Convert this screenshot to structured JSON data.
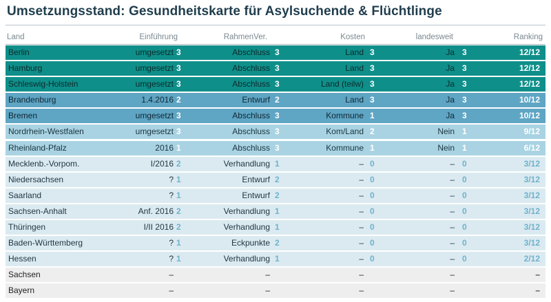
{
  "title": "Umsetzungsstand: Gesundheitskarte für Asylsuchende & Flüchtlinge",
  "colors": {
    "tier_full": "#0f8f8a",
    "tier_high": "#5fa5c4",
    "tier_mid": "#a9d3e2",
    "tier_low": "#dbeaf1",
    "tier_none": "#eeeeee"
  },
  "chart_data": {
    "type": "table",
    "title": "Umsetzungsstand: Gesundheitskarte für Asylsuchende & Flüchtlinge",
    "columns": [
      "Land",
      "Einführung",
      "RahmenVer.",
      "Kosten",
      "landesweit",
      "Ranking"
    ],
    "rows": [
      {
        "land": "Berlin",
        "einfuehrung": "umgesetzt",
        "einfuehrung_score": "3",
        "rahmen": "Abschluss",
        "rahmen_score": "3",
        "kosten": "Land",
        "kosten_score": "3",
        "landesweit": "Ja",
        "landesweit_score": "3",
        "ranking": "12/12",
        "tier": "t1"
      },
      {
        "land": "Hamburg",
        "einfuehrung": "umgesetzt",
        "einfuehrung_score": "3",
        "rahmen": "Abschluss",
        "rahmen_score": "3",
        "kosten": "Land",
        "kosten_score": "3",
        "landesweit": "Ja",
        "landesweit_score": "3",
        "ranking": "12/12",
        "tier": "t1"
      },
      {
        "land": "Schleswig-Holstein",
        "einfuehrung": "umgesetzt",
        "einfuehrung_score": "3",
        "rahmen": "Abschluss",
        "rahmen_score": "3",
        "kosten": "Land (teilw)",
        "kosten_score": "3",
        "landesweit": "Ja",
        "landesweit_score": "3",
        "ranking": "12/12",
        "tier": "t1"
      },
      {
        "land": "Brandenburg",
        "einfuehrung": "1.4.2016",
        "einfuehrung_score": "2",
        "rahmen": "Entwurf",
        "rahmen_score": "2",
        "kosten": "Land",
        "kosten_score": "3",
        "landesweit": "Ja",
        "landesweit_score": "3",
        "ranking": "10/12",
        "tier": "t2"
      },
      {
        "land": "Bremen",
        "einfuehrung": "umgesetzt",
        "einfuehrung_score": "3",
        "rahmen": "Abschluss",
        "rahmen_score": "3",
        "kosten": "Kommune",
        "kosten_score": "1",
        "landesweit": "Ja",
        "landesweit_score": "3",
        "ranking": "10/12",
        "tier": "t2"
      },
      {
        "land": "Nordrhein-Westfalen",
        "einfuehrung": "umgesetzt",
        "einfuehrung_score": "3",
        "rahmen": "Abschluss",
        "rahmen_score": "3",
        "kosten": "Kom/Land",
        "kosten_score": "2",
        "landesweit": "Nein",
        "landesweit_score": "1",
        "ranking": "9/12",
        "tier": "t3"
      },
      {
        "land": "Rheinland-Pfalz",
        "einfuehrung": "2016",
        "einfuehrung_score": "1",
        "rahmen": "Abschluss",
        "rahmen_score": "3",
        "kosten": "Kommune",
        "kosten_score": "1",
        "landesweit": "Nein",
        "landesweit_score": "1",
        "ranking": "6/12",
        "tier": "t3"
      },
      {
        "land": "Mecklenb.-Vorpom.",
        "einfuehrung": "I/2016",
        "einfuehrung_score": "2",
        "rahmen": "Verhandlung",
        "rahmen_score": "1",
        "kosten": "–",
        "kosten_score": "0",
        "landesweit": "–",
        "landesweit_score": "0",
        "ranking": "3/12",
        "tier": "t4"
      },
      {
        "land": "Niedersachsen",
        "einfuehrung": "?",
        "einfuehrung_score": "1",
        "rahmen": "Entwurf",
        "rahmen_score": "2",
        "kosten": "–",
        "kosten_score": "0",
        "landesweit": "–",
        "landesweit_score": "0",
        "ranking": "3/12",
        "tier": "t4"
      },
      {
        "land": "Saarland",
        "einfuehrung": "?",
        "einfuehrung_score": "1",
        "rahmen": "Entwurf",
        "rahmen_score": "2",
        "kosten": "–",
        "kosten_score": "0",
        "landesweit": "–",
        "landesweit_score": "0",
        "ranking": "3/12",
        "tier": "t4"
      },
      {
        "land": "Sachsen-Anhalt",
        "einfuehrung": "Anf. 2016",
        "einfuehrung_score": "2",
        "rahmen": "Verhandlung",
        "rahmen_score": "1",
        "kosten": "–",
        "kosten_score": "0",
        "landesweit": "–",
        "landesweit_score": "0",
        "ranking": "3/12",
        "tier": "t4"
      },
      {
        "land": "Thüringen",
        "einfuehrung": "I/II 2016",
        "einfuehrung_score": "2",
        "rahmen": "Verhandlung",
        "rahmen_score": "1",
        "kosten": "–",
        "kosten_score": "0",
        "landesweit": "–",
        "landesweit_score": "0",
        "ranking": "3/12",
        "tier": "t4"
      },
      {
        "land": "Baden-Württemberg",
        "einfuehrung": "?",
        "einfuehrung_score": "1",
        "rahmen": "Eckpunkte",
        "rahmen_score": "2",
        "kosten": "–",
        "kosten_score": "0",
        "landesweit": "–",
        "landesweit_score": "0",
        "ranking": "3/12",
        "tier": "t4"
      },
      {
        "land": "Hessen",
        "einfuehrung": "?",
        "einfuehrung_score": "1",
        "rahmen": "Verhandlung",
        "rahmen_score": "1",
        "kosten": "–",
        "kosten_score": "0",
        "landesweit": "–",
        "landesweit_score": "0",
        "ranking": "2/12",
        "tier": "t4"
      },
      {
        "land": "Sachsen",
        "einfuehrung": "–",
        "einfuehrung_score": "",
        "rahmen": "–",
        "rahmen_score": "",
        "kosten": "–",
        "kosten_score": "",
        "landesweit": "–",
        "landesweit_score": "",
        "ranking": "–",
        "tier": "t5"
      },
      {
        "land": "Bayern",
        "einfuehrung": "–",
        "einfuehrung_score": "",
        "rahmen": "–",
        "rahmen_score": "",
        "kosten": "–",
        "kosten_score": "",
        "landesweit": "–",
        "landesweit_score": "",
        "ranking": "–",
        "tier": "t5"
      }
    ]
  }
}
